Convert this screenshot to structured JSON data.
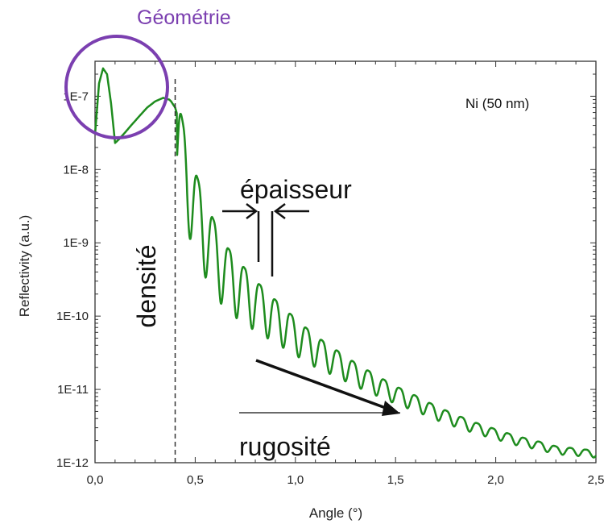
{
  "chart_data": {
    "type": "line",
    "title": "",
    "xlabel": "Angle (°)",
    "ylabel": "Reflectivity (a.u.)",
    "xlim": [
      0,
      2.5
    ],
    "ylim": [
      1e-12,
      3e-07
    ],
    "y_scale": "log",
    "x_ticks": [
      "0,0",
      "0,5",
      "1,0",
      "1,5",
      "2,0",
      "2,5"
    ],
    "x_tick_values": [
      0,
      0.5,
      1.0,
      1.5,
      2.0,
      2.5
    ],
    "y_ticks": [
      "1E-12",
      "1E-11",
      "1E-10",
      "1E-9",
      "1E-8",
      "1E-7"
    ],
    "y_tick_values": [
      1e-12,
      1e-11,
      1e-10,
      1e-09,
      1e-08,
      1e-07
    ],
    "series_color": "#1e8c1e",
    "series": [
      {
        "x": [
          0.0,
          0.02,
          0.04,
          0.06,
          0.08,
          0.1,
          0.12,
          0.15,
          0.18,
          0.22,
          0.26,
          0.3,
          0.34,
          0.37,
          0.38,
          0.4,
          0.42,
          0.44,
          0.46,
          0.48,
          0.5,
          0.52,
          0.55,
          0.6,
          0.65,
          0.7,
          0.8,
          0.9,
          1.0,
          1.1,
          1.2,
          1.3,
          1.4,
          1.5,
          1.6,
          1.7,
          1.8,
          1.9,
          2.0,
          2.1,
          2.2,
          2.3,
          2.4,
          2.5
        ],
        "y": [
          3e-08,
          1.5e-07,
          2.4e-07,
          2e-07,
          8e-08,
          2.3e-08,
          2.6e-08,
          3.2e-08,
          4e-08,
          5.3e-08,
          7e-08,
          8.5e-08,
          9.5e-08,
          9e-08,
          8.5e-08,
          7e-08,
          4.5e-08,
          2.4e-08,
          1.5e-08,
          9.5e-09,
          6e-09,
          4e-09,
          2.5e-09,
          1.2e-09,
          6.5e-10,
          4.5e-10,
          2.3e-10,
          1.3e-10,
          7.5e-11,
          4.5e-11,
          3e-11,
          2e-11,
          1.4e-11,
          1e-11,
          7.5e-12,
          5.5e-12,
          4.2e-12,
          3.3e-12,
          2.7e-12,
          2.2e-12,
          1.9e-12,
          1.6e-12,
          1.5e-12,
          1.4e-12
        ]
      }
    ],
    "critical_angle_marker": 0.4,
    "annotations": {
      "sample": "Ni (50 nm)",
      "geometry": "Géométrie",
      "thickness": "épaisseur",
      "density": "densité",
      "roughness": "rugosité"
    }
  },
  "colors": {
    "curve": "#1e8c1e",
    "geometry_circle": "#7b3fb0",
    "annotation_text": "#111111"
  }
}
